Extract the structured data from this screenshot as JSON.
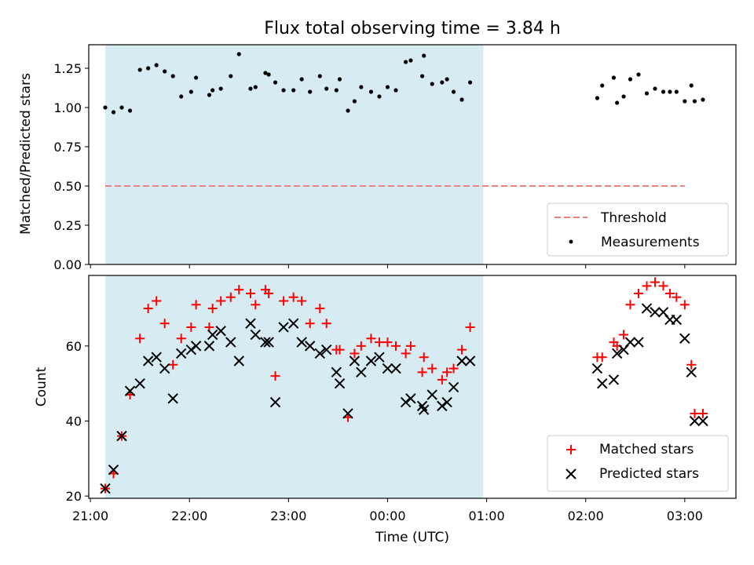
{
  "chart_data": [
    {
      "type": "scatter",
      "title": "Flux total observing time = 3.84 h",
      "xlabel": "",
      "ylabel": "Matched/Predicted stars",
      "ylim": [
        0,
        1.4
      ],
      "yticks": [
        "0.00",
        "0.25",
        "0.50",
        "0.75",
        "1.00",
        "1.25"
      ],
      "ytick_values": [
        0,
        0.25,
        0.5,
        0.75,
        1.0,
        1.25
      ],
      "shaded_region": {
        "x_start_min": 1269,
        "x_end_min": 1498,
        "color": "#add8e6"
      },
      "threshold": {
        "name": "Threshold",
        "value": 0.5,
        "x_start_min": 1269,
        "x_end_min": 1620,
        "color": "#f08080"
      },
      "series": [
        {
          "name": "Measurements",
          "marker": "dot",
          "color": "#000000",
          "points": [
            [
              1269,
              1.0
            ],
            [
              1274,
              0.97
            ],
            [
              1279,
              1.0
            ],
            [
              1284,
              0.98
            ],
            [
              1290,
              1.24
            ],
            [
              1295,
              1.25
            ],
            [
              1300,
              1.27
            ],
            [
              1305,
              1.23
            ],
            [
              1310,
              1.2
            ],
            [
              1315,
              1.07
            ],
            [
              1321,
              1.1
            ],
            [
              1324,
              1.19
            ],
            [
              1332,
              1.08
            ],
            [
              1334,
              1.11
            ],
            [
              1339,
              1.12
            ],
            [
              1345,
              1.2
            ],
            [
              1350,
              1.34
            ],
            [
              1357,
              1.12
            ],
            [
              1360,
              1.13
            ],
            [
              1366,
              1.22
            ],
            [
              1368,
              1.21
            ],
            [
              1372,
              1.16
            ],
            [
              1377,
              1.11
            ],
            [
              1383,
              1.11
            ],
            [
              1388,
              1.18
            ],
            [
              1393,
              1.1
            ],
            [
              1399,
              1.2
            ],
            [
              1403,
              1.12
            ],
            [
              1409,
              1.11
            ],
            [
              1411,
              1.18
            ],
            [
              1416,
              0.98
            ],
            [
              1420,
              1.04
            ],
            [
              1424,
              1.13
            ],
            [
              1430,
              1.1
            ],
            [
              1435,
              1.07
            ],
            [
              1440,
              1.13
            ],
            [
              1445,
              1.11
            ],
            [
              1451,
              1.29
            ],
            [
              1454,
              1.3
            ],
            [
              1461,
              1.2
            ],
            [
              1462,
              1.33
            ],
            [
              1467,
              1.15
            ],
            [
              1473,
              1.16
            ],
            [
              1476,
              1.18
            ],
            [
              1480,
              1.1
            ],
            [
              1485,
              1.05
            ],
            [
              1490,
              1.16
            ],
            [
              1567,
              1.06
            ],
            [
              1570,
              1.14
            ],
            [
              1577,
              1.19
            ],
            [
              1579,
              1.03
            ],
            [
              1583,
              1.07
            ],
            [
              1587,
              1.18
            ],
            [
              1592,
              1.21
            ],
            [
              1597,
              1.09
            ],
            [
              1602,
              1.12
            ],
            [
              1607,
              1.1
            ],
            [
              1611,
              1.1
            ],
            [
              1615,
              1.1
            ],
            [
              1620,
              1.04
            ],
            [
              1624,
              1.14
            ],
            [
              1626,
              1.04
            ],
            [
              1631,
              1.05
            ]
          ]
        }
      ],
      "legend": {
        "position": "bottom-right",
        "entries": [
          "Threshold",
          "Measurements"
        ]
      }
    },
    {
      "type": "scatter",
      "title": "",
      "xlabel": "Time (UTC)",
      "ylabel": "Count",
      "ylim": [
        19.4,
        78.8
      ],
      "yticks": [
        "20",
        "40",
        "60"
      ],
      "ytick_values": [
        20,
        40,
        60
      ],
      "xlim_min": [
        1259,
        1651
      ],
      "xticks": [
        "21:00",
        "22:00",
        "23:00",
        "00:00",
        "01:00",
        "02:00",
        "03:00"
      ],
      "xtick_values_min": [
        1260,
        1320,
        1380,
        1440,
        1500,
        1560,
        1620
      ],
      "shaded_region": {
        "x_start_min": 1269,
        "x_end_min": 1498,
        "color": "#add8e6"
      },
      "series": [
        {
          "name": "Matched stars",
          "marker": "plus",
          "color": "#ff0000",
          "points": [
            [
              1269,
              22
            ],
            [
              1274,
              26
            ],
            [
              1279,
              36
            ],
            [
              1284,
              47
            ],
            [
              1290,
              62
            ],
            [
              1295,
              70
            ],
            [
              1300,
              72
            ],
            [
              1305,
              66
            ],
            [
              1310,
              55
            ],
            [
              1315,
              62
            ],
            [
              1321,
              65
            ],
            [
              1324,
              71
            ],
            [
              1332,
              65
            ],
            [
              1334,
              70
            ],
            [
              1339,
              72
            ],
            [
              1345,
              73
            ],
            [
              1350,
              75
            ],
            [
              1357,
              74
            ],
            [
              1360,
              71
            ],
            [
              1366,
              75
            ],
            [
              1368,
              74
            ],
            [
              1372,
              52
            ],
            [
              1377,
              72
            ],
            [
              1383,
              73
            ],
            [
              1388,
              72
            ],
            [
              1393,
              66
            ],
            [
              1399,
              70
            ],
            [
              1403,
              66
            ],
            [
              1409,
              59
            ],
            [
              1411,
              59
            ],
            [
              1416,
              41
            ],
            [
              1420,
              58
            ],
            [
              1424,
              60
            ],
            [
              1430,
              62
            ],
            [
              1435,
              61
            ],
            [
              1440,
              61
            ],
            [
              1445,
              60
            ],
            [
              1451,
              58
            ],
            [
              1454,
              60
            ],
            [
              1461,
              53
            ],
            [
              1462,
              57
            ],
            [
              1467,
              54
            ],
            [
              1473,
              51
            ],
            [
              1476,
              53
            ],
            [
              1480,
              54
            ],
            [
              1485,
              59
            ],
            [
              1490,
              65
            ],
            [
              1567,
              57
            ],
            [
              1570,
              57
            ],
            [
              1577,
              61
            ],
            [
              1579,
              60
            ],
            [
              1583,
              63
            ],
            [
              1587,
              71
            ],
            [
              1592,
              74
            ],
            [
              1597,
              76
            ],
            [
              1602,
              77
            ],
            [
              1607,
              76
            ],
            [
              1611,
              74
            ],
            [
              1615,
              73
            ],
            [
              1620,
              71
            ],
            [
              1624,
              55
            ],
            [
              1626,
              42
            ],
            [
              1631,
              42
            ]
          ]
        },
        {
          "name": "Predicted stars",
          "marker": "x",
          "color": "#000000",
          "points": [
            [
              1269,
              22
            ],
            [
              1274,
              27
            ],
            [
              1279,
              36
            ],
            [
              1284,
              48
            ],
            [
              1290,
              50
            ],
            [
              1295,
              56
            ],
            [
              1300,
              57
            ],
            [
              1305,
              54
            ],
            [
              1310,
              46
            ],
            [
              1315,
              58
            ],
            [
              1321,
              59
            ],
            [
              1324,
              60
            ],
            [
              1332,
              60
            ],
            [
              1334,
              63
            ],
            [
              1339,
              64
            ],
            [
              1345,
              61
            ],
            [
              1350,
              56
            ],
            [
              1357,
              66
            ],
            [
              1360,
              63
            ],
            [
              1366,
              61
            ],
            [
              1368,
              61
            ],
            [
              1372,
              45
            ],
            [
              1377,
              65
            ],
            [
              1383,
              66
            ],
            [
              1388,
              61
            ],
            [
              1393,
              60
            ],
            [
              1399,
              58
            ],
            [
              1403,
              59
            ],
            [
              1409,
              53
            ],
            [
              1411,
              50
            ],
            [
              1416,
              42
            ],
            [
              1420,
              56
            ],
            [
              1424,
              53
            ],
            [
              1430,
              56
            ],
            [
              1435,
              57
            ],
            [
              1440,
              54
            ],
            [
              1445,
              54
            ],
            [
              1451,
              45
            ],
            [
              1454,
              46
            ],
            [
              1461,
              44
            ],
            [
              1462,
              43
            ],
            [
              1467,
              47
            ],
            [
              1473,
              44
            ],
            [
              1476,
              45
            ],
            [
              1480,
              49
            ],
            [
              1485,
              56
            ],
            [
              1490,
              56
            ],
            [
              1567,
              54
            ],
            [
              1570,
              50
            ],
            [
              1577,
              51
            ],
            [
              1579,
              58
            ],
            [
              1583,
              59
            ],
            [
              1587,
              61
            ],
            [
              1592,
              61
            ],
            [
              1597,
              70
            ],
            [
              1602,
              69
            ],
            [
              1607,
              69
            ],
            [
              1611,
              67
            ],
            [
              1615,
              67
            ],
            [
              1620,
              62
            ],
            [
              1624,
              53
            ],
            [
              1626,
              40
            ],
            [
              1631,
              40
            ]
          ]
        }
      ],
      "legend": {
        "position": "bottom-right",
        "entries": [
          "Matched stars",
          "Predicted stars"
        ]
      }
    }
  ]
}
